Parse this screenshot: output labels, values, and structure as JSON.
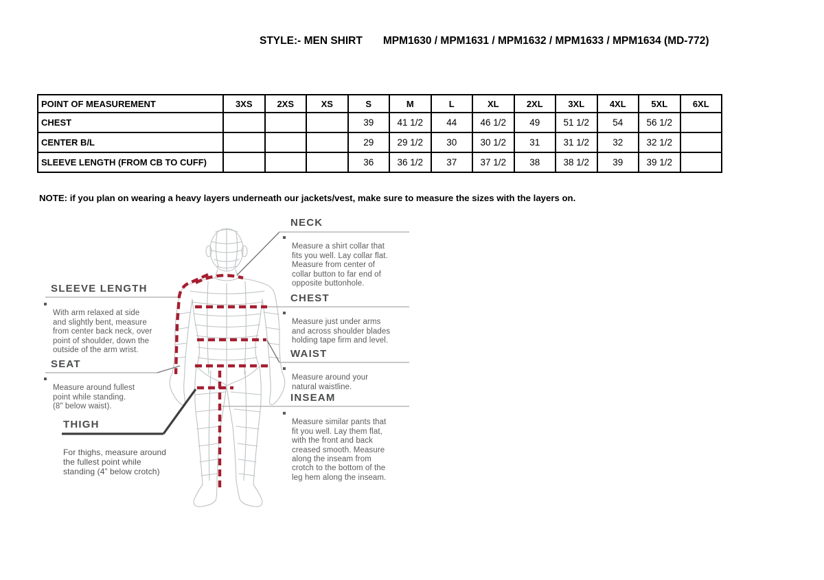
{
  "title": {
    "style_label": "STYLE:- MEN SHIRT",
    "codes": "MPM1630 / MPM1631 / MPM1632 / MPM1633 / MPM1634 (MD-772)"
  },
  "table": {
    "header_label": "POINT OF MEASUREMENT",
    "sizes": [
      "3XS",
      "2XS",
      "XS",
      "S",
      "M",
      "L",
      "XL",
      "2XL",
      "3XL",
      "4XL",
      "5XL",
      "6XL"
    ],
    "rows": [
      {
        "label": "CHEST",
        "values": [
          "",
          "",
          "",
          "39",
          "41 1/2",
          "44",
          "46 1/2",
          "49",
          "51 1/2",
          "54",
          "56 1/2",
          ""
        ]
      },
      {
        "label": "CENTER B/L",
        "values": [
          "",
          "",
          "",
          "29",
          "29 1/2",
          "30",
          "30 1/2",
          "31",
          "31 1/2",
          "32",
          "32 1/2",
          ""
        ]
      },
      {
        "label": "SLEEVE LENGTH (FROM CB TO CUFF)",
        "values": [
          "",
          "",
          "",
          "36",
          "36 1/2",
          "37",
          "37 1/2",
          "38",
          "38 1/2",
          "39",
          "39 1/2",
          ""
        ]
      }
    ]
  },
  "note": "NOTE: if you plan on wearing a heavy layers underneath our jackets/vest, make sure to measure the sizes with the layers on.",
  "diagram": {
    "neck": {
      "title": "NECK",
      "text": "Measure a shirt collar that\nfits you well. Lay collar flat.\nMeasure from center of\ncollar button to far end of\nopposite buttonhole."
    },
    "chest": {
      "title": "CHEST",
      "text": "Measure just under arms\nand across shoulder blades\nholding tape firm and level."
    },
    "waist": {
      "title": "WAIST",
      "text": "Measure around your\nnatural waistline."
    },
    "inseam": {
      "title": "INSEAM",
      "text": "Measure similar pants that\nfit you well. Lay them flat,\nwith the front and back\ncreased smooth. Measure\nalong the inseam from\ncrotch to the bottom of the\nleg hem along the inseam."
    },
    "sleeve_length": {
      "title": "SLEEVE LENGTH",
      "text": "With arm relaxed at side\nand slightly bent, measure\nfrom center back neck, over\npoint of shoulder, down the\noutside of the arm wrist."
    },
    "seat": {
      "title": "SEAT",
      "text": "Measure around fullest\npoint while standing.\n(8\" below waist)."
    },
    "thigh": {
      "title": "THIGH",
      "text": "For thighs, measure around\nthe fullest point while\nstanding (4” below crotch)"
    }
  },
  "colors": {
    "measurement_line": "#a51e30",
    "wireframe": "#bdc1c3",
    "annotation_text": "#595a5c",
    "table_border": "#000000"
  }
}
